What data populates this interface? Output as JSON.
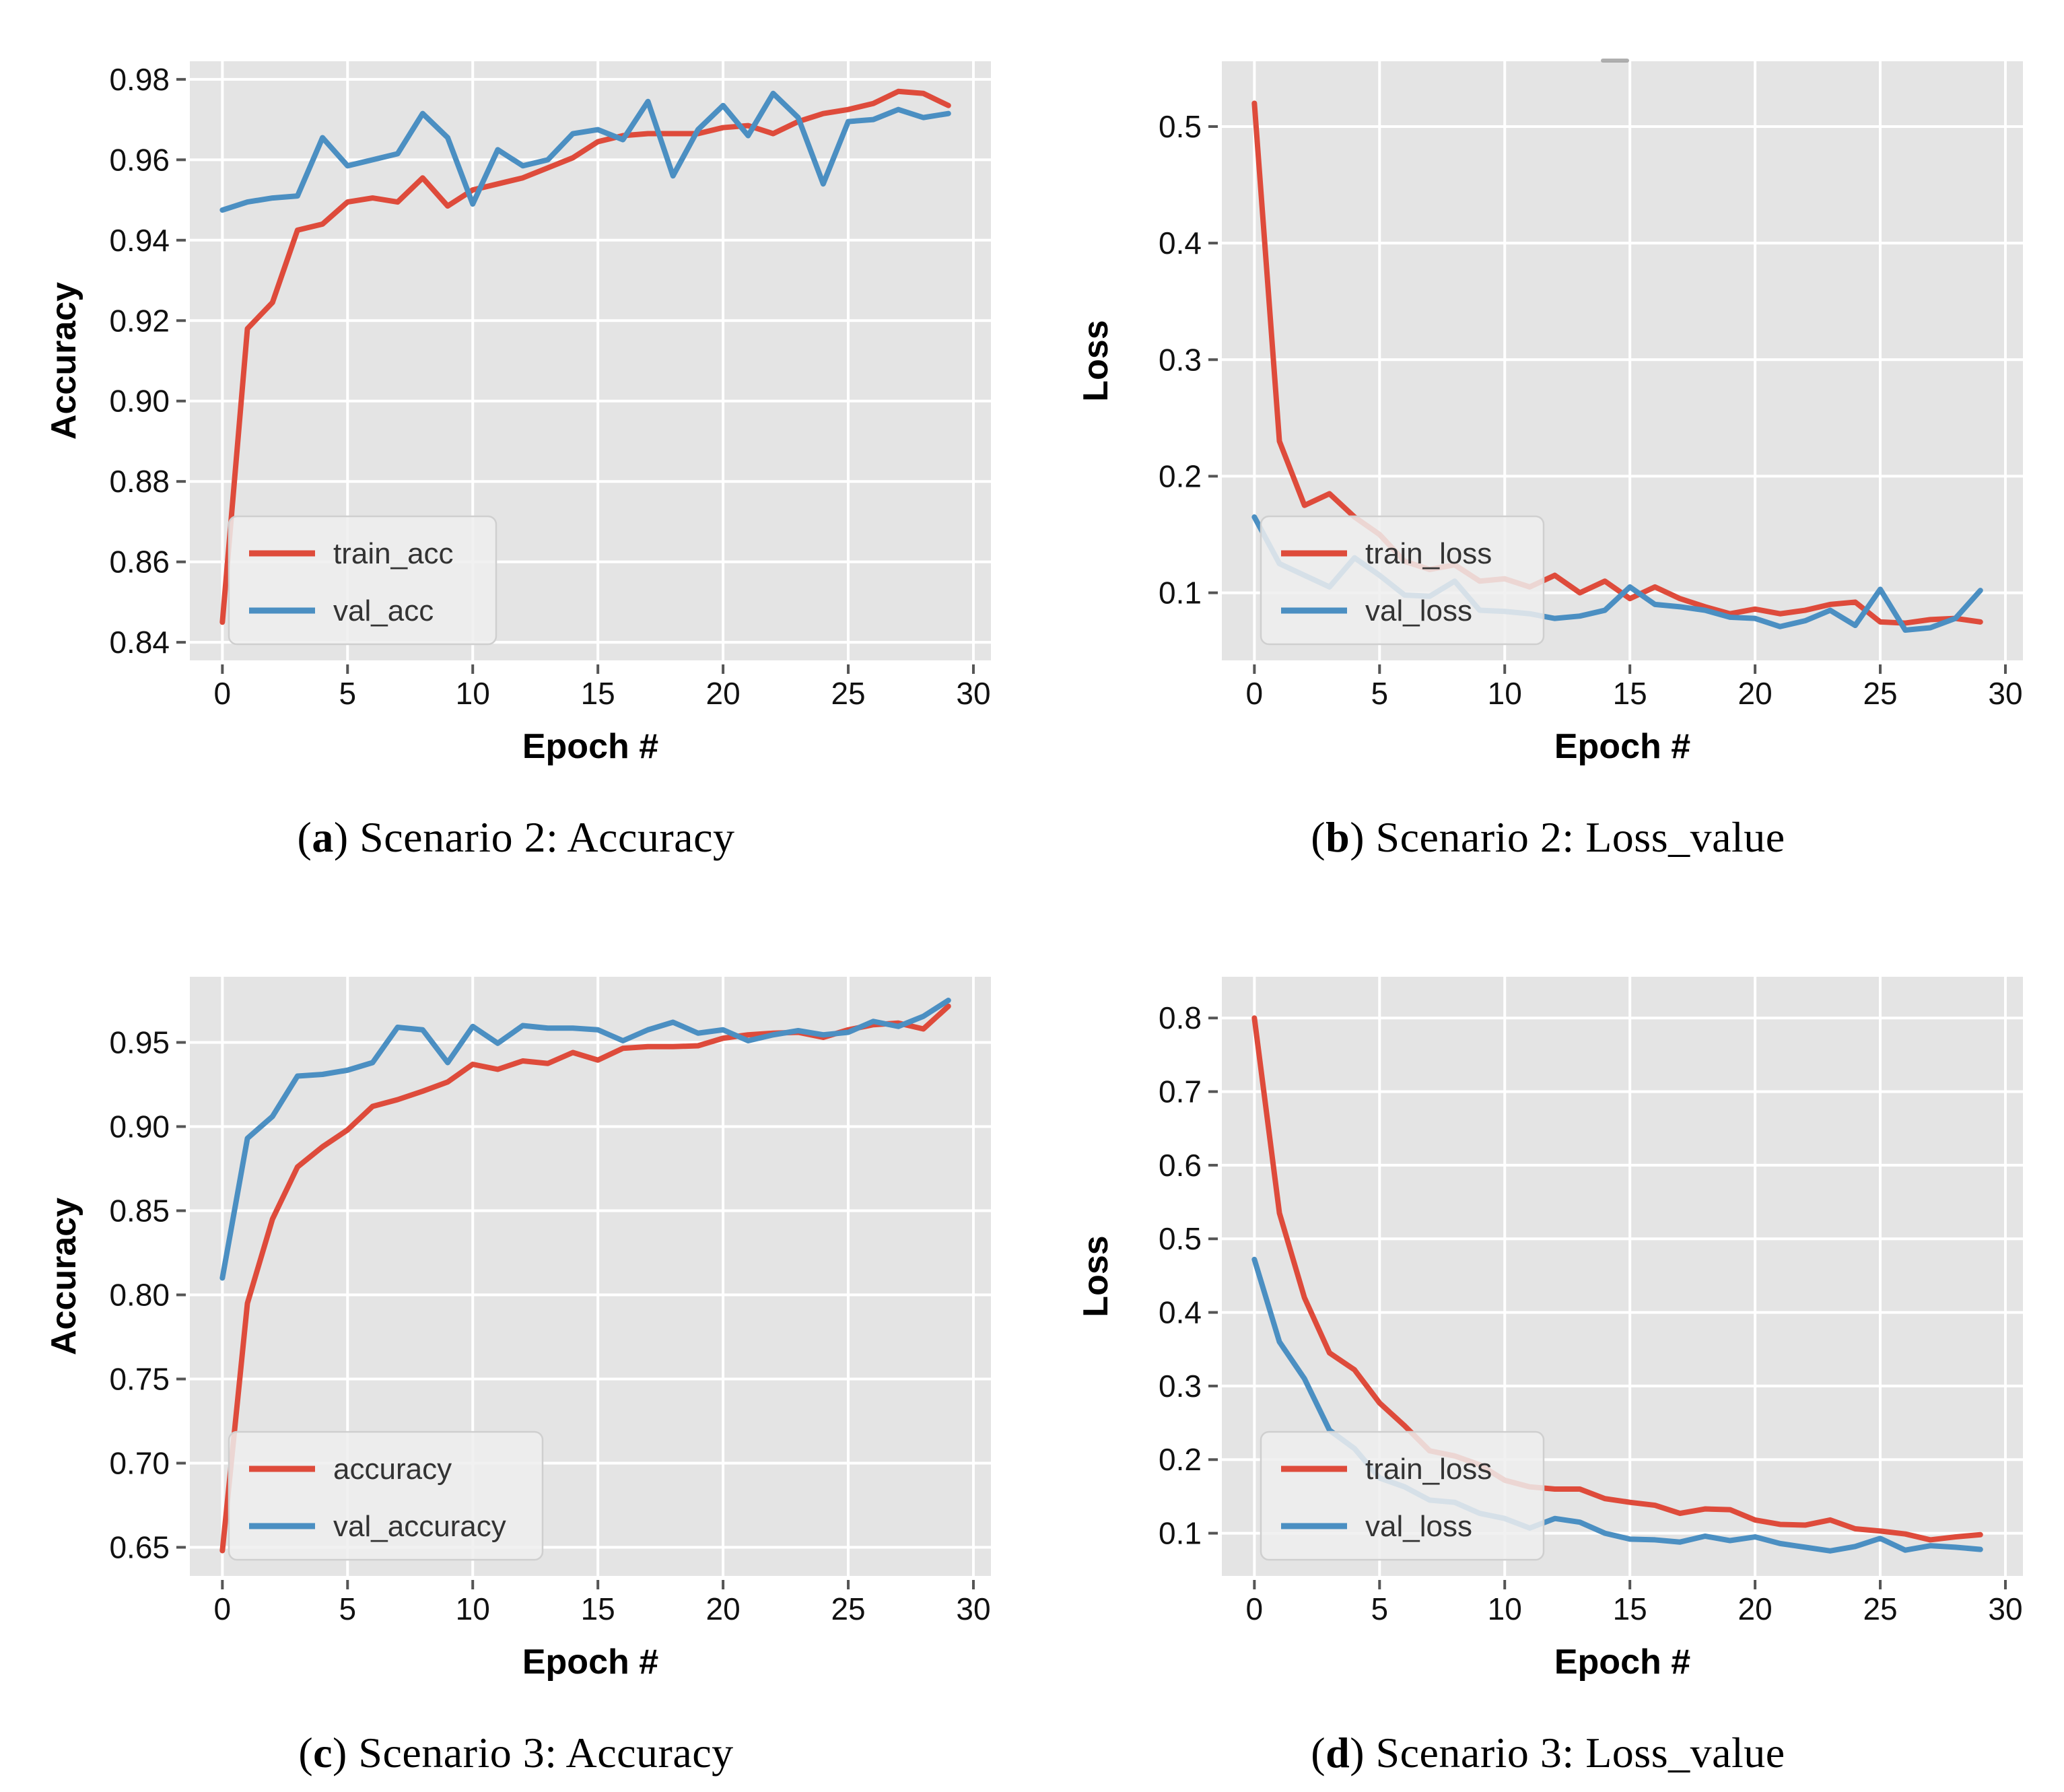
{
  "page": {
    "background": "#ffffff"
  },
  "palette": {
    "red": "#DE4B3B",
    "blue": "#4B8FC2",
    "plot_bg": "#E4E4E4",
    "grid": "#FFFFFF",
    "tick_color": "#555555",
    "tick_text": "#111111",
    "legend_bg": "#EFEFEF",
    "legend_border": "#CFCFCF",
    "legend_text": "#333333"
  },
  "chart_data": [
    {
      "id": "a",
      "type": "line",
      "caption_parts": [
        "(",
        "a",
        ") Scenario 2: Accuracy"
      ],
      "xlabel": "Epoch #",
      "ylabel": "Accuracy",
      "xlim": [
        -1.3,
        30.7
      ],
      "ylim": [
        0.8355,
        0.9845
      ],
      "xticks": [
        0,
        5,
        10,
        15,
        20,
        25,
        30
      ],
      "xtick_labels": [
        "0",
        "5",
        "10",
        "15",
        "20",
        "25",
        "30"
      ],
      "yticks": [
        0.84,
        0.86,
        0.88,
        0.9,
        0.92,
        0.94,
        0.96,
        0.98
      ],
      "ytick_labels": [
        "0.84",
        "0.86",
        "0.88",
        "0.90",
        "0.92",
        "0.94",
        "0.96",
        "0.98"
      ],
      "legend_position": "lower-left",
      "grid": true,
      "series": [
        {
          "name": "train_acc",
          "color": "#DE4B3B",
          "values": [
            0.845,
            0.918,
            0.9245,
            0.9425,
            0.944,
            0.9495,
            0.9505,
            0.9495,
            0.9555,
            0.9485,
            0.9525,
            0.954,
            0.9555,
            0.958,
            0.9605,
            0.9645,
            0.966,
            0.9665,
            0.9665,
            0.9665,
            0.968,
            0.9685,
            0.9665,
            0.9695,
            0.9715,
            0.9725,
            0.974,
            0.977,
            0.9765,
            0.9735
          ]
        },
        {
          "name": "val_acc",
          "color": "#4B8FC2",
          "values": [
            0.9475,
            0.9495,
            0.9505,
            0.951,
            0.9655,
            0.9585,
            0.96,
            0.9615,
            0.9715,
            0.9655,
            0.949,
            0.9625,
            0.9585,
            0.96,
            0.9665,
            0.9675,
            0.965,
            0.9745,
            0.956,
            0.9675,
            0.9735,
            0.966,
            0.9765,
            0.9705,
            0.954,
            0.9695,
            0.97,
            0.9725,
            0.9705,
            0.9715
          ]
        }
      ]
    },
    {
      "id": "b",
      "type": "line",
      "caption_parts": [
        "(",
        "b",
        ") Scenario 2: Loss_value"
      ],
      "xlabel": "Epoch #",
      "ylabel": "Loss",
      "xlim": [
        -1.3,
        30.7
      ],
      "ylim": [
        0.042,
        0.556
      ],
      "xticks": [
        0,
        5,
        10,
        15,
        20,
        25,
        30
      ],
      "xtick_labels": [
        "0",
        "5",
        "10",
        "15",
        "20",
        "25",
        "30"
      ],
      "yticks": [
        0.1,
        0.2,
        0.3,
        0.4,
        0.5
      ],
      "ytick_labels": [
        "0.1",
        "0.2",
        "0.3",
        "0.4",
        "0.5"
      ],
      "legend_position": "lower-left",
      "grid": true,
      "series": [
        {
          "name": "train_loss",
          "color": "#DE4B3B",
          "values": [
            0.52,
            0.23,
            0.175,
            0.185,
            0.165,
            0.15,
            0.127,
            0.12,
            0.124,
            0.11,
            0.112,
            0.105,
            0.115,
            0.1,
            0.11,
            0.095,
            0.105,
            0.095,
            0.088,
            0.082,
            0.086,
            0.082,
            0.085,
            0.09,
            0.092,
            0.075,
            0.074,
            0.077,
            0.078,
            0.075
          ]
        },
        {
          "name": "val_loss",
          "color": "#4B8FC2",
          "values": [
            0.165,
            0.125,
            0.115,
            0.105,
            0.13,
            0.115,
            0.098,
            0.097,
            0.11,
            0.085,
            0.084,
            0.082,
            0.078,
            0.08,
            0.085,
            0.105,
            0.09,
            0.088,
            0.085,
            0.079,
            0.078,
            0.071,
            0.076,
            0.085,
            0.072,
            0.103,
            0.068,
            0.07,
            0.078,
            0.102
          ]
        }
      ]
    },
    {
      "id": "c",
      "type": "line",
      "caption_parts": [
        "(",
        "c",
        ") Scenario 3: Accuracy"
      ],
      "xlabel": "Epoch #",
      "ylabel": "Accuracy",
      "xlim": [
        -1.3,
        30.7
      ],
      "ylim": [
        0.633,
        0.989
      ],
      "xticks": [
        0,
        5,
        10,
        15,
        20,
        25,
        30
      ],
      "xtick_labels": [
        "0",
        "5",
        "10",
        "15",
        "20",
        "25",
        "30"
      ],
      "yticks": [
        0.65,
        0.7,
        0.75,
        0.8,
        0.85,
        0.9,
        0.95
      ],
      "ytick_labels": [
        "0.65",
        "0.70",
        "0.75",
        "0.80",
        "0.85",
        "0.90",
        "0.95"
      ],
      "legend_position": "lower-left",
      "grid": true,
      "series": [
        {
          "name": "accuracy",
          "color": "#DE4B3B",
          "values": [
            0.648,
            0.795,
            0.845,
            0.876,
            0.888,
            0.898,
            0.912,
            0.916,
            0.921,
            0.9265,
            0.937,
            0.934,
            0.939,
            0.9375,
            0.944,
            0.9395,
            0.9465,
            0.9475,
            0.9475,
            0.948,
            0.9525,
            0.9545,
            0.9555,
            0.956,
            0.953,
            0.9575,
            0.9605,
            0.9615,
            0.958,
            0.9715
          ]
        },
        {
          "name": "val_accuracy",
          "color": "#4B8FC2",
          "values": [
            0.81,
            0.893,
            0.906,
            0.93,
            0.931,
            0.9335,
            0.938,
            0.959,
            0.9575,
            0.938,
            0.9595,
            0.9495,
            0.96,
            0.9585,
            0.9585,
            0.9575,
            0.951,
            0.9575,
            0.962,
            0.9555,
            0.9575,
            0.951,
            0.9545,
            0.957,
            0.9545,
            0.956,
            0.9625,
            0.9595,
            0.9655,
            0.975
          ]
        }
      ]
    },
    {
      "id": "d",
      "type": "line",
      "caption_parts": [
        "(",
        "d",
        ") Scenario 3: Loss_value"
      ],
      "xlabel": "Epoch #",
      "ylabel": "Loss",
      "xlim": [
        -1.3,
        30.7
      ],
      "ylim": [
        0.042,
        0.856
      ],
      "xticks": [
        0,
        5,
        10,
        15,
        20,
        25,
        30
      ],
      "xtick_labels": [
        "0",
        "5",
        "10",
        "15",
        "20",
        "25",
        "30"
      ],
      "yticks": [
        0.1,
        0.2,
        0.3,
        0.4,
        0.5,
        0.6,
        0.7,
        0.8
      ],
      "ytick_labels": [
        "0.1",
        "0.2",
        "0.3",
        "0.4",
        "0.5",
        "0.6",
        "0.7",
        "0.8"
      ],
      "legend_position": "lower-left",
      "grid": true,
      "series": [
        {
          "name": "train_loss",
          "color": "#DE4B3B",
          "values": [
            0.8,
            0.535,
            0.42,
            0.345,
            0.322,
            0.277,
            0.246,
            0.212,
            0.205,
            0.193,
            0.172,
            0.163,
            0.16,
            0.16,
            0.147,
            0.142,
            0.138,
            0.127,
            0.133,
            0.132,
            0.118,
            0.112,
            0.111,
            0.118,
            0.106,
            0.103,
            0.099,
            0.091,
            0.095,
            0.098
          ]
        },
        {
          "name": "val_loss",
          "color": "#4B8FC2",
          "values": [
            0.472,
            0.36,
            0.31,
            0.24,
            0.215,
            0.175,
            0.163,
            0.145,
            0.142,
            0.127,
            0.12,
            0.107,
            0.12,
            0.115,
            0.1,
            0.092,
            0.091,
            0.088,
            0.096,
            0.09,
            0.095,
            0.086,
            0.081,
            0.076,
            0.082,
            0.093,
            0.077,
            0.083,
            0.081,
            0.078
          ]
        }
      ]
    }
  ]
}
